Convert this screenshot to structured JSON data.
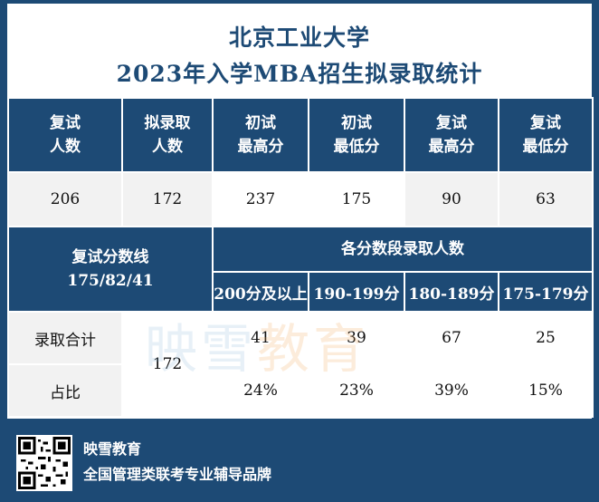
{
  "title": {
    "line1": "北京工业大学",
    "line2": "2023年入学MBA招生拟录取统计"
  },
  "header_row": [
    {
      "line1": "复试",
      "line2": "人数"
    },
    {
      "line1": "拟录取",
      "line2": "人数"
    },
    {
      "line1": "初试",
      "line2": "最高分"
    },
    {
      "line1": "初试",
      "line2": "最低分"
    },
    {
      "line1": "复试",
      "line2": "最高分"
    },
    {
      "line1": "复试",
      "line2": "最低分"
    }
  ],
  "values_row": [
    "206",
    "172",
    "237",
    "175",
    "90",
    "63"
  ],
  "cutoff": {
    "label": "复试分数线",
    "value": "175/82/41"
  },
  "bands": {
    "title": "各分数段录取人数",
    "labels": [
      "200分及以上",
      "190-199分",
      "180-189分",
      "175-179分"
    ]
  },
  "rows": {
    "admit_label": "录取合计",
    "ratio_label": "占比",
    "total": "172",
    "admit_counts": [
      "41",
      "39",
      "67",
      "25"
    ],
    "ratios": [
      "24%",
      "23%",
      "39%",
      "15%"
    ]
  },
  "watermark": {
    "part1": "映雪",
    "part2": "教育"
  },
  "footer": {
    "brand": "映雪教育",
    "slogan": "全国管理类联考专业辅导品牌"
  },
  "colors": {
    "primary": "#1d4a75",
    "cell_light": "#f2f2f2"
  }
}
